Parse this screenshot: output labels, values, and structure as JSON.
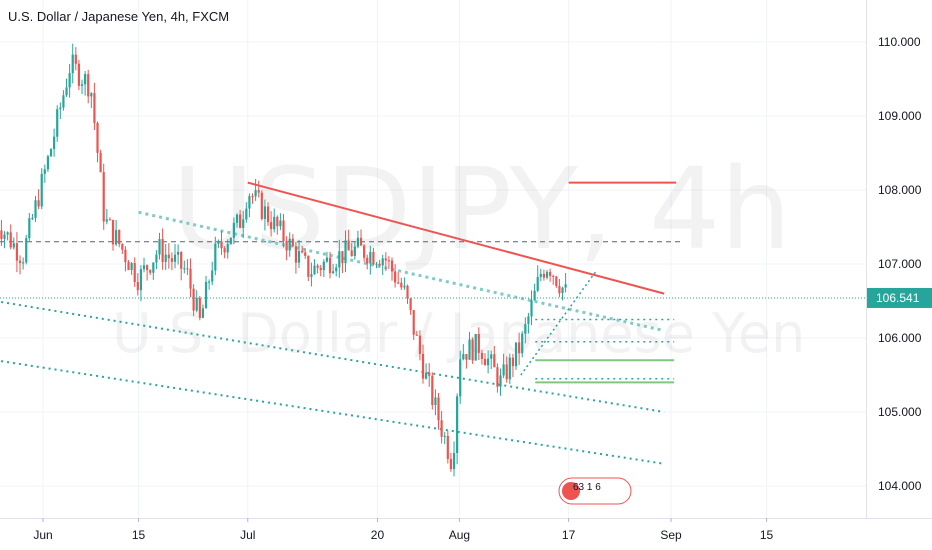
{
  "header": {
    "title": "U.S. Dollar / Japanese Yen, 4h, FXCM"
  },
  "watermark": {
    "big": "USDJPY, 4h",
    "small": "U.S. Dollar / Japanese Yen"
  },
  "price_tag": {
    "value": "106.541",
    "color": "#26a69a"
  },
  "badge": {
    "text": "63  1  6"
  },
  "colors": {
    "up": "#26a69a",
    "down": "#ef5350",
    "resistance": "#ef5350",
    "support": "#80cbc4",
    "target": "#81c784"
  },
  "chart_data": {
    "type": "candlestick",
    "title": "U.S. Dollar / Japanese Yen, 4h, FXCM",
    "y_ticks": [
      "110.000",
      "109.000",
      "108.000",
      "107.000",
      "106.000",
      "105.000",
      "104.000"
    ],
    "x_ticks": [
      "Jun",
      "15",
      "Jul",
      "20",
      "Aug",
      "17",
      "Sep",
      "15"
    ],
    "ylim": [
      103.5,
      110.6
    ],
    "last_price": 106.541,
    "price_path": [
      {
        "date": "2020-05-25",
        "close": 107.6
      },
      {
        "date": "2020-05-29",
        "close": 107.1
      },
      {
        "date": "2020-06-02",
        "close": 108.5
      },
      {
        "date": "2020-06-05",
        "close": 109.7
      },
      {
        "date": "2020-06-08",
        "close": 109.4
      },
      {
        "date": "2020-06-10",
        "close": 107.6
      },
      {
        "date": "2020-06-12",
        "close": 107.3
      },
      {
        "date": "2020-06-15",
        "close": 106.8
      },
      {
        "date": "2020-06-18",
        "close": 107.2
      },
      {
        "date": "2020-06-22",
        "close": 106.9
      },
      {
        "date": "2020-06-24",
        "close": 106.2
      },
      {
        "date": "2020-06-26",
        "close": 107.1
      },
      {
        "date": "2020-06-30",
        "close": 107.6
      },
      {
        "date": "2020-07-01",
        "close": 108.0
      },
      {
        "date": "2020-07-06",
        "close": 107.4
      },
      {
        "date": "2020-07-10",
        "close": 106.9
      },
      {
        "date": "2020-07-14",
        "close": 107.1
      },
      {
        "date": "2020-07-17",
        "close": 107.2
      },
      {
        "date": "2020-07-21",
        "close": 107.1
      },
      {
        "date": "2020-07-24",
        "close": 106.6
      },
      {
        "date": "2020-07-27",
        "close": 105.5
      },
      {
        "date": "2020-07-29",
        "close": 104.9
      },
      {
        "date": "2020-07-31",
        "close": 104.3
      },
      {
        "date": "2020-08-01",
        "close": 105.8
      },
      {
        "date": "2020-08-04",
        "close": 105.9
      },
      {
        "date": "2020-08-07",
        "close": 105.4
      },
      {
        "date": "2020-08-10",
        "close": 105.9
      },
      {
        "date": "2020-08-13",
        "close": 106.9
      },
      {
        "date": "2020-08-14",
        "close": 107.0
      },
      {
        "date": "2020-08-17",
        "close": 106.54
      }
    ],
    "annotations": {
      "horizontal_levels": [
        107.3,
        108.1
      ],
      "descending_resistance": [
        {
          "date": "2020-07-01",
          "value": 108.1
        },
        {
          "date": "2020-08-31",
          "value": 106.6
        }
      ],
      "descending_support": [
        {
          "date": "2020-06-15",
          "value": 107.7
        },
        {
          "date": "2020-08-31",
          "value": 106.1
        }
      ],
      "lower_channel_1": [
        {
          "date": "2020-05-25",
          "value": 106.5
        },
        {
          "date": "2020-08-31",
          "value": 105.0
        }
      ],
      "lower_channel_2": [
        {
          "date": "2020-05-25",
          "value": 105.7
        },
        {
          "date": "2020-08-31",
          "value": 104.3
        }
      ],
      "target_lines": [
        106.25,
        105.95,
        105.7,
        105.45,
        105.4
      ]
    }
  }
}
